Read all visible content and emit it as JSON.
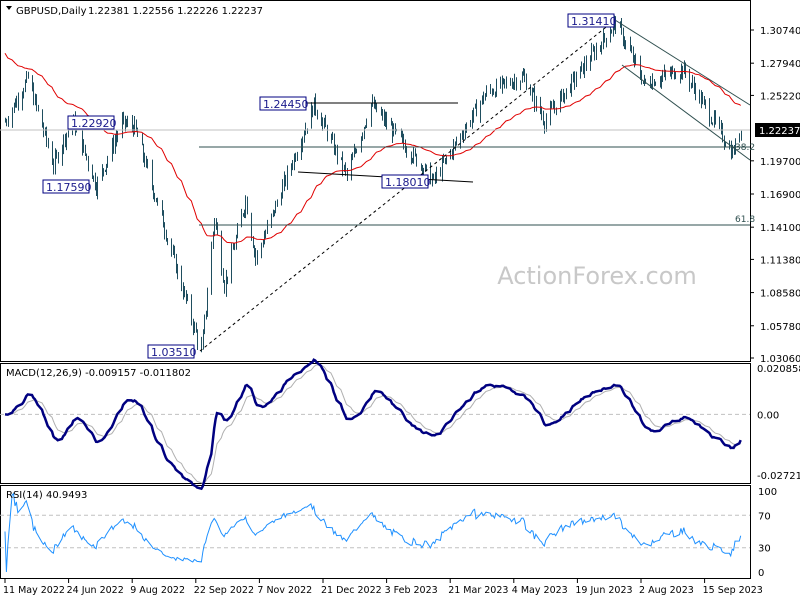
{
  "header": {
    "symbol": "GBPUSD,Daily",
    "ohlc": "1.22381 1.22556 1.22226 1.22237"
  },
  "watermark": "ActionForex.com",
  "colors": {
    "bars": "#1f4e5f",
    "ma": "#e00000",
    "macd": "#000080",
    "signal": "#b0b0b0",
    "rsi": "#1e90ff",
    "label_border": "#000080",
    "current_price_bg": "#000000"
  },
  "chart_data": [
    {
      "type": "ohlc",
      "title": "GBPUSD,Daily",
      "current_price": "1.22237",
      "y_ticks": [
        "1.30740",
        "1.27940",
        "1.25220",
        "1.19700",
        "1.16900",
        "1.14100",
        "1.11380",
        "1.08580",
        "1.05780",
        "1.03060"
      ],
      "ylim": [
        1.0306,
        1.3074
      ],
      "x_ticks": [
        "11 May 2022",
        "24 Jun 2022",
        "9 Aug 2022",
        "22 Sep 2022",
        "7 Nov 2022",
        "21 Dec 2022",
        "3 Feb 2023",
        "21 Mar 2023",
        "4 May 2023",
        "19 Jun 2023",
        "2 Aug 2023",
        "15 Sep 2023"
      ],
      "swing_path": [
        [
          "2022-05-11",
          1.23
        ],
        [
          "2022-05-27",
          1.2666
        ],
        [
          "2022-06-14",
          1.1934
        ],
        [
          "2022-06-27",
          1.2332
        ],
        [
          "2022-07-14",
          1.1759
        ],
        [
          "2022-08-01",
          1.2292
        ],
        [
          "2022-08-10",
          1.225
        ],
        [
          "2022-09-26",
          1.0351
        ],
        [
          "2022-10-05",
          1.1496
        ],
        [
          "2022-10-12",
          1.0924
        ],
        [
          "2022-10-27",
          1.1644
        ],
        [
          "2022-11-03",
          1.1142
        ],
        [
          "2022-12-14",
          1.2445
        ],
        [
          "2023-01-06",
          1.1841
        ],
        [
          "2023-01-23",
          1.2448
        ],
        [
          "2023-03-08",
          1.1801
        ],
        [
          "2023-04-14",
          1.2546
        ],
        [
          "2023-05-10",
          1.268
        ],
        [
          "2023-05-25",
          1.2308
        ],
        [
          "2023-07-14",
          1.3141
        ],
        [
          "2023-08-03",
          1.262
        ],
        [
          "2023-08-30",
          1.2746
        ],
        [
          "2023-10-04",
          1.2037
        ],
        [
          "2023-10-10",
          1.2224
        ]
      ],
      "annotations": {
        "price_labels": [
          "1.31410",
          "1.24450",
          "1.22920",
          "1.17590",
          "1.18010",
          "1.03510"
        ],
        "fib_levels": [
          "38.2",
          "61.8"
        ]
      },
      "moving_average": "red"
    },
    {
      "type": "line",
      "title": "MACD(12,26,9) -0.009157 -0.011802",
      "y_ticks": [
        "0.020858",
        "0.00",
        "-0.027213"
      ],
      "ylim": [
        -0.027213,
        0.020858
      ]
    },
    {
      "type": "line",
      "title": "RSI(14) 40.9493",
      "y_ticks": [
        "100",
        "70",
        "30",
        "0"
      ],
      "ylim": [
        0,
        100
      ]
    }
  ]
}
